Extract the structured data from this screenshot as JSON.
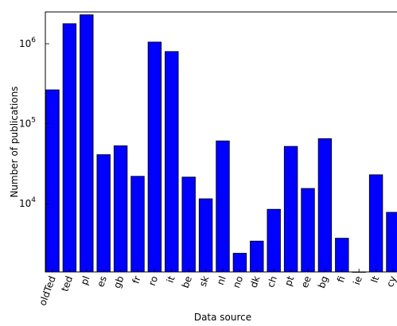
{
  "chart_data": {
    "type": "bar",
    "xlabel": "Data source",
    "ylabel": "Number of publications",
    "yscale": "log",
    "ylim": [
      1400,
      2500000
    ],
    "categories": [
      "oldTed",
      "ted",
      "pl",
      "es",
      "gb",
      "fr",
      "ro",
      "it",
      "be",
      "sk",
      "nl",
      "no",
      "dk",
      "ch",
      "pt",
      "ee",
      "bg",
      "fi",
      "ie",
      "lt",
      "cy"
    ],
    "values": [
      265000,
      1780000,
      2300000,
      41000,
      53000,
      22000,
      1050000,
      800000,
      21500,
      11500,
      61000,
      2400,
      3400,
      8500,
      52000,
      15500,
      65000,
      3700,
      1400,
      23000,
      7800
    ],
    "yticks": [
      {
        "value": 1000000,
        "base": "10",
        "exp": "6"
      },
      {
        "value": 100000,
        "base": "10",
        "exp": "5"
      },
      {
        "value": 10000,
        "base": "10",
        "exp": "4"
      }
    ],
    "colors": {
      "bar": "#0000ff",
      "edge": "#000000"
    },
    "grid": false,
    "legend": "none"
  }
}
